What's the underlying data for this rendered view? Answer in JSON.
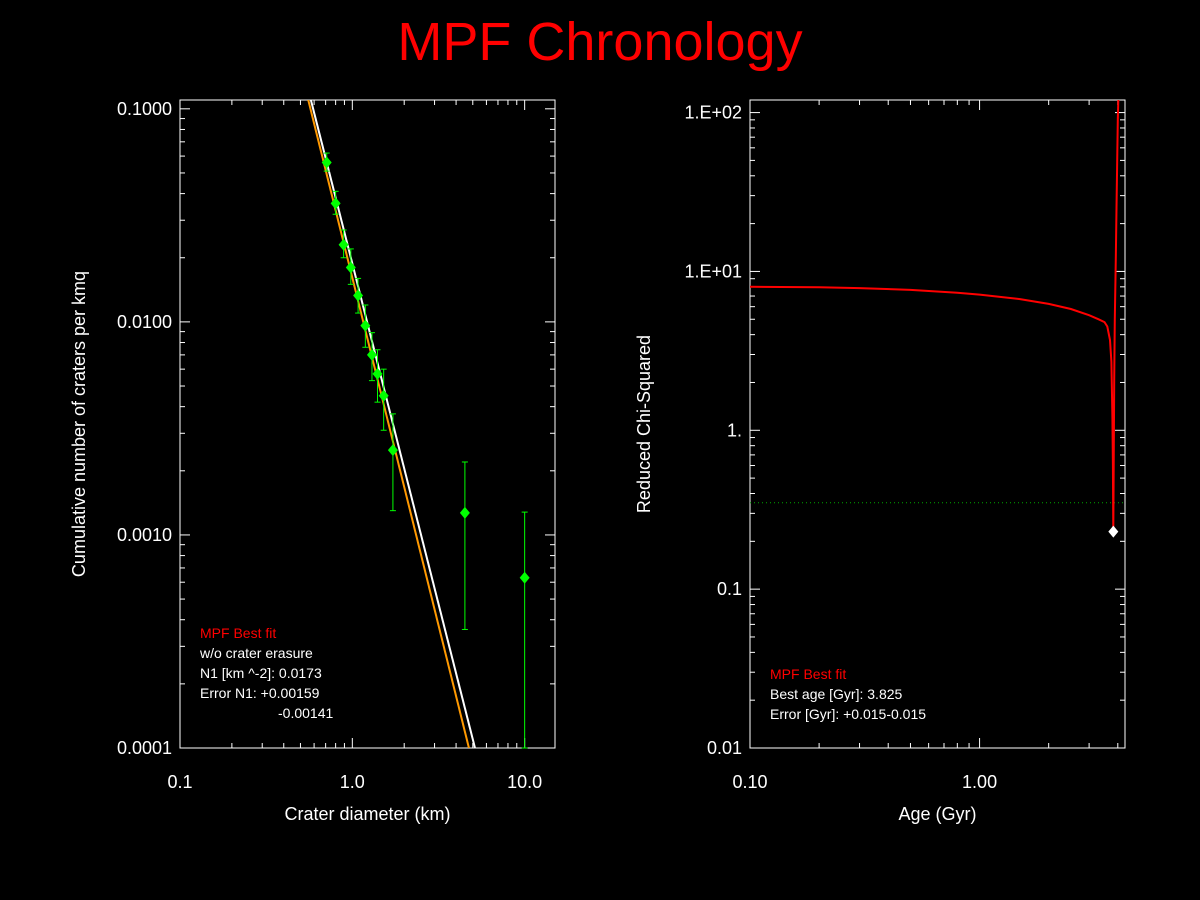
{
  "title": "MPF Chronology",
  "colors": {
    "background": "#000000",
    "title": "#ff0000",
    "axes": "#ffffff",
    "data_points": "#00ff00",
    "fit_white": "#ffffff",
    "fit_orange": "#ff9900",
    "chi_curve": "#ff0000",
    "threshold": "#00aa00",
    "best_marker": "#ffffff",
    "legend_heading": "#ff0000"
  },
  "chart_data": [
    {
      "type": "scatter",
      "xlabel": "Crater diameter (km)",
      "ylabel": "Cumulative number of craters per kmq",
      "xscale": "log",
      "yscale": "log",
      "xlim": [
        0.1,
        15
      ],
      "ylim": [
        0.0001,
        0.11
      ],
      "xticks": [
        0.1,
        1.0,
        10.0
      ],
      "xtick_labels": [
        "0.1",
        "1.0",
        "10.0"
      ],
      "yticks": [
        0.0001,
        0.001,
        0.01,
        0.1
      ],
      "ytick_labels": [
        "0.0001",
        "0.0010",
        "0.0100",
        "0.1000"
      ],
      "points": [
        {
          "x": 0.71,
          "y": 0.056,
          "ylo": 0.051,
          "yhi": 0.062
        },
        {
          "x": 0.8,
          "y": 0.036,
          "ylo": 0.032,
          "yhi": 0.041
        },
        {
          "x": 0.89,
          "y": 0.023,
          "ylo": 0.02,
          "yhi": 0.027
        },
        {
          "x": 0.98,
          "y": 0.018,
          "ylo": 0.015,
          "yhi": 0.022
        },
        {
          "x": 1.08,
          "y": 0.0133,
          "ylo": 0.011,
          "yhi": 0.016
        },
        {
          "x": 1.19,
          "y": 0.0096,
          "ylo": 0.0076,
          "yhi": 0.012
        },
        {
          "x": 1.3,
          "y": 0.007,
          "ylo": 0.0053,
          "yhi": 0.0089
        },
        {
          "x": 1.4,
          "y": 0.0057,
          "ylo": 0.0042,
          "yhi": 0.0074
        },
        {
          "x": 1.52,
          "y": 0.0045,
          "ylo": 0.0031,
          "yhi": 0.006
        },
        {
          "x": 1.72,
          "y": 0.0025,
          "ylo": 0.0013,
          "yhi": 0.0037
        },
        {
          "x": 4.5,
          "y": 0.00127,
          "ylo": 0.00036,
          "yhi": 0.0022
        },
        {
          "x": 10.0,
          "y": 0.00063,
          "ylo": 0.0001,
          "yhi": 0.00128
        }
      ],
      "fit_lines": [
        {
          "color": "white",
          "x": [
            0.575,
            5.15
          ],
          "y": [
            0.11,
            0.0001
          ]
        },
        {
          "color": "orange",
          "x": [
            0.555,
            4.75
          ],
          "y": [
            0.11,
            0.0001
          ]
        }
      ],
      "legend": {
        "heading": "MPF Best fit",
        "lines": [
          "w/o crater erasure",
          "N1 [km ^-2]: 0.0173",
          "Error N1: +0.00159",
          "-0.00141"
        ]
      }
    },
    {
      "type": "line",
      "xlabel": "Age (Gyr)",
      "ylabel": "Reduced Chi-Squared",
      "xscale": "log",
      "yscale": "log",
      "xlim": [
        0.1,
        4.3
      ],
      "ylim": [
        0.01,
        120
      ],
      "xticks": [
        0.1,
        1.0
      ],
      "xtick_labels": [
        "0.10",
        "1.00"
      ],
      "yticks": [
        0.01,
        0.1,
        1,
        10,
        100
      ],
      "ytick_labels": [
        "0.01",
        "0.1",
        "1.",
        "1.E+01",
        "1.E+02"
      ],
      "series": [
        {
          "x": [
            0.1,
            0.2,
            0.3,
            0.5,
            0.8,
            1.0,
            1.5,
            2.0,
            2.5,
            3.0,
            3.3,
            3.5,
            3.6,
            3.7,
            3.75,
            3.79,
            3.81,
            3.825,
            3.84,
            3.86,
            3.88,
            3.92,
            3.95,
            3.98,
            4.0,
            4.02
          ],
          "y": [
            8.0,
            7.95,
            7.85,
            7.65,
            7.35,
            7.15,
            6.7,
            6.25,
            5.8,
            5.3,
            5.0,
            4.8,
            4.5,
            3.7,
            2.7,
            1.2,
            0.6,
            0.23,
            0.6,
            2.0,
            5.0,
            12.0,
            25.0,
            55.0,
            90.0,
            120.0
          ]
        }
      ],
      "threshold_y": 0.35,
      "best_point": {
        "x": 3.825,
        "y": 0.23
      },
      "legend": {
        "heading": "MPF Best fit",
        "lines": [
          "Best age [Gyr]: 3.825",
          "Error [Gyr]: +0.015-0.015"
        ]
      }
    }
  ]
}
